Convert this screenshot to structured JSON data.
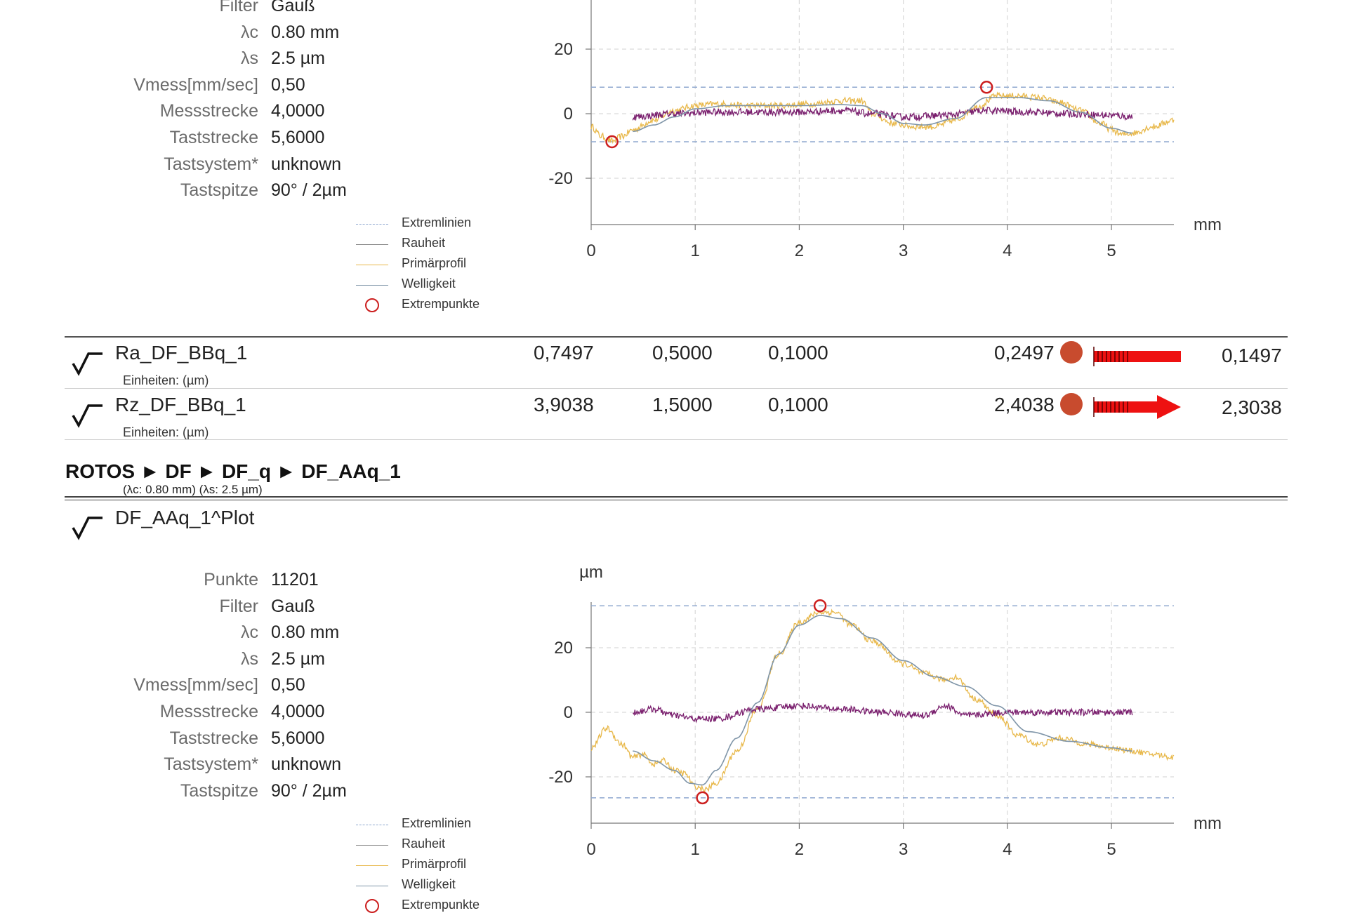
{
  "colors": {
    "extremlinien": "#8fa8cf",
    "rauheit": "#7a1f6e",
    "primaerprofil": "#e8b84a",
    "welligkeit": "#7f95a8",
    "extrempunkte": "#cc1f1f",
    "grid": "#d9d9d9",
    "status_dot": "#c84b2e",
    "arrow": "#ee1111"
  },
  "top_section": {
    "meta": [
      {
        "label": "Filter",
        "value": "Gauß"
      },
      {
        "label": "λc",
        "value": "0.80 mm"
      },
      {
        "label": "λs",
        "value": "2.5 µm"
      },
      {
        "label": "Vmess[mm/sec]",
        "value": "0,50"
      },
      {
        "label": "Messstrecke",
        "value": "4,0000"
      },
      {
        "label": "Taststrecke",
        "value": "5,6000"
      },
      {
        "label": "Tastsystem*",
        "value": "unknown"
      },
      {
        "label": "Tastspitze",
        "value": "90° / 2µm"
      }
    ],
    "legend": [
      {
        "label": "Extremlinien",
        "icon": "dashed-line-icon"
      },
      {
        "label": "Rauheit",
        "icon": "line-icon"
      },
      {
        "label": "Primärprofil",
        "icon": "line-icon"
      },
      {
        "label": "Welligkeit",
        "icon": "line-icon"
      },
      {
        "label": "Extrempunkte",
        "icon": "circle-icon"
      }
    ]
  },
  "results": [
    {
      "icon": "profile-check-icon",
      "name": "Ra_DF_BBq_1",
      "unit": "Einheiten: (µm)",
      "measured": "0,7497",
      "nominal": "0,5000",
      "tolerance": "0,1000",
      "deviation": "0,2497",
      "exceed": "0,1497",
      "indicator": "bar"
    },
    {
      "icon": "profile-check-icon",
      "name": "Rz_DF_BBq_1",
      "unit": "Einheiten: (µm)",
      "measured": "3,9038",
      "nominal": "1,5000",
      "tolerance": "0,1000",
      "deviation": "2,4038",
      "exceed": "2,3038",
      "indicator": "arrow"
    }
  ],
  "breadcrumb": {
    "items": [
      "ROTOS",
      "DF",
      "DF_q",
      "DF_AAq_1"
    ],
    "separator": "►",
    "subtitle": "(λc: 0.80 mm) (λs: 2.5 µm)"
  },
  "plot2": {
    "icon": "profile-check-icon",
    "title": "DF_AAq_1^Plot",
    "meta": [
      {
        "label": "Punkte",
        "value": "11201"
      },
      {
        "label": "Filter",
        "value": "Gauß"
      },
      {
        "label": "λc",
        "value": "0.80 mm"
      },
      {
        "label": "λs",
        "value": "2.5 µm"
      },
      {
        "label": "Vmess[mm/sec]",
        "value": "0,50"
      },
      {
        "label": "Messstrecke",
        "value": "4,0000"
      },
      {
        "label": "Taststrecke",
        "value": "5,6000"
      },
      {
        "label": "Tastsystem*",
        "value": "unknown"
      },
      {
        "label": "Tastspitze",
        "value": "90° / 2µm"
      }
    ],
    "legend": [
      {
        "label": "Extremlinien",
        "icon": "dashed-line-icon"
      },
      {
        "label": "Rauheit",
        "icon": "line-icon"
      },
      {
        "label": "Primärprofil",
        "icon": "line-icon"
      },
      {
        "label": "Welligkeit",
        "icon": "line-icon"
      },
      {
        "label": "Extrempunkte",
        "icon": "circle-icon"
      }
    ]
  },
  "chart_data": [
    {
      "type": "line",
      "xlabel": "mm",
      "ylabel": "",
      "xlim": [
        0,
        5.6
      ],
      "ylim": [
        -34,
        34
      ],
      "xticks": [
        0,
        1,
        2,
        3,
        4,
        5
      ],
      "yticks": [
        -20,
        0,
        20
      ],
      "grid": true,
      "extreme_lines": [
        8.2,
        -8.7
      ],
      "extreme_points": [
        {
          "x": 0.2,
          "y": -8.7
        },
        {
          "x": 3.8,
          "y": 8.2
        }
      ],
      "series": [
        {
          "name": "Primärprofil",
          "noise": 1.0,
          "x": [
            0,
            0.1,
            0.2,
            0.3,
            0.4,
            0.6,
            0.8,
            1.0,
            1.2,
            1.5,
            1.8,
            2.1,
            2.4,
            2.6,
            2.7,
            2.9,
            3.1,
            3.3,
            3.5,
            3.7,
            3.9,
            4.1,
            4.3,
            4.5,
            4.7,
            4.9,
            5.0,
            5.1,
            5.2,
            5.4,
            5.6
          ],
          "y": [
            -4,
            -7,
            -8.5,
            -7,
            -5,
            -2,
            1,
            2.5,
            3,
            2.5,
            2.5,
            3,
            4,
            4,
            0,
            -3,
            -4,
            -4,
            -2,
            2,
            5.5,
            5.5,
            5,
            3.5,
            1,
            -3,
            -5,
            -6.5,
            -6,
            -4,
            -2
          ]
        },
        {
          "name": "Rauheit",
          "noise": 1.1,
          "x": [
            0.4,
            0.8,
            1.2,
            1.6,
            2.0,
            2.4,
            2.7,
            3.0,
            3.4,
            3.8,
            4.2,
            4.6,
            5.0,
            5.2
          ],
          "y": [
            -1,
            0,
            0.5,
            0.5,
            0.5,
            1,
            0,
            -1,
            -0.5,
            1,
            0.5,
            0,
            -0.5,
            -1
          ]
        },
        {
          "name": "Welligkeit",
          "noise": 0,
          "x": [
            0.4,
            0.6,
            0.8,
            1.0,
            1.3,
            1.6,
            2.0,
            2.4,
            2.6,
            2.8,
            3.0,
            3.2,
            3.5,
            3.8,
            4.1,
            4.4,
            4.7,
            5.0,
            5.2
          ],
          "y": [
            -5.5,
            -3.5,
            -1,
            1.5,
            2.5,
            2.5,
            2.5,
            2.8,
            2.5,
            0,
            -3,
            -3.5,
            -1.5,
            5,
            5,
            4,
            0.5,
            -4.5,
            -6
          ]
        }
      ]
    },
    {
      "type": "line",
      "xlabel": "mm",
      "ylabel": "µm",
      "xlim": [
        0,
        5.6
      ],
      "ylim": [
        -34,
        34
      ],
      "xticks": [
        0,
        1,
        2,
        3,
        4,
        5
      ],
      "yticks": [
        -20,
        0,
        20
      ],
      "grid": true,
      "extreme_lines": [
        33,
        -26.5
      ],
      "extreme_points": [
        {
          "x": 1.07,
          "y": -26.5
        },
        {
          "x": 2.2,
          "y": 33
        }
      ],
      "series": [
        {
          "name": "Primärprofil",
          "noise": 0.9,
          "x": [
            0,
            0.15,
            0.3,
            0.4,
            0.5,
            0.6,
            0.7,
            0.8,
            0.9,
            1.0,
            1.1,
            1.2,
            1.4,
            1.6,
            1.8,
            2.0,
            2.2,
            2.35,
            2.5,
            2.7,
            3.0,
            3.2,
            3.4,
            3.5,
            3.7,
            3.9,
            4.1,
            4.3,
            4.5,
            4.8,
            5.0,
            5.2,
            5.4,
            5.6
          ],
          "y": [
            -11,
            -5,
            -10,
            -14,
            -13,
            -16,
            -15,
            -18,
            -19,
            -23,
            -24,
            -22,
            -12,
            1,
            18,
            28,
            31,
            31,
            27,
            22,
            15,
            12,
            10,
            11,
            4,
            -1,
            -7,
            -10,
            -8,
            -10,
            -11,
            -12,
            -13,
            -14
          ]
        },
        {
          "name": "Rauheit",
          "noise": 1.0,
          "x": [
            0.4,
            0.6,
            0.8,
            1.0,
            1.2,
            1.6,
            2.0,
            2.4,
            2.8,
            3.2,
            3.4,
            3.6,
            4.0,
            4.4,
            4.8,
            5.2
          ],
          "y": [
            0,
            1,
            -1,
            -2,
            -2,
            1,
            2,
            1,
            0,
            -1,
            2,
            -1,
            0,
            0,
            0,
            0
          ]
        },
        {
          "name": "Welligkeit",
          "noise": 0,
          "x": [
            0.4,
            0.6,
            0.8,
            0.95,
            1.07,
            1.2,
            1.4,
            1.6,
            1.8,
            2.0,
            2.2,
            2.4,
            2.7,
            3.0,
            3.3,
            3.6,
            3.9,
            4.2,
            4.6,
            5.0,
            5.2
          ],
          "y": [
            -12,
            -15,
            -18,
            -22,
            -22.5,
            -18,
            -8,
            3,
            18,
            27,
            30,
            29,
            23,
            16,
            11,
            8,
            2,
            -6,
            -9,
            -11,
            -12
          ]
        }
      ]
    }
  ]
}
